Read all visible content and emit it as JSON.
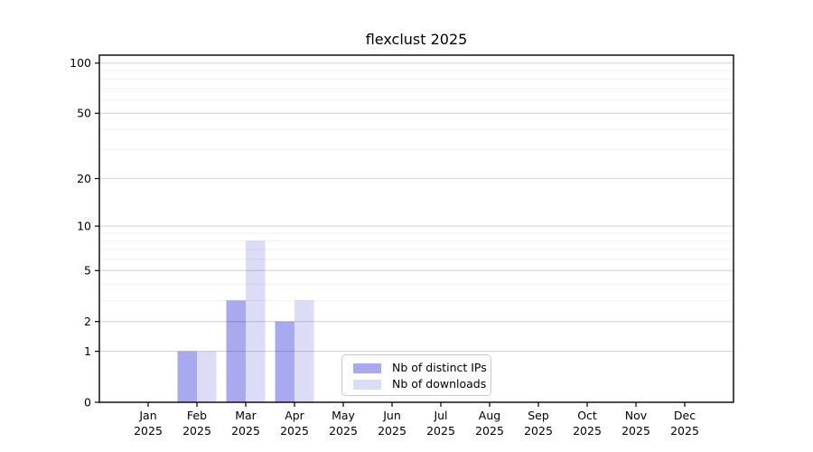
{
  "chart_data": {
    "type": "bar",
    "title": "flexclust 2025",
    "categories": [
      "Jan",
      "Feb",
      "Mar",
      "Apr",
      "May",
      "Jun",
      "Jul",
      "Aug",
      "Sep",
      "Oct",
      "Nov",
      "Dec"
    ],
    "x_tick_year": "2025",
    "series": [
      {
        "name": "Nb of distinct IPs",
        "color": "#a9a9f0",
        "values": [
          0,
          1,
          3,
          2,
          0,
          0,
          0,
          0,
          0,
          0,
          0,
          0
        ]
      },
      {
        "name": "Nb of downloads",
        "color": "#dcdcf7",
        "values": [
          0,
          1,
          8,
          3,
          0,
          0,
          0,
          0,
          0,
          0,
          0,
          0
        ]
      }
    ],
    "yscale": "log1p",
    "yticks": [
      0,
      1,
      2,
      5,
      10,
      20,
      50,
      100
    ],
    "minor_yticks": [
      3,
      4,
      6,
      7,
      8,
      9,
      30,
      40,
      60,
      70,
      80,
      90
    ],
    "ylim": [
      0,
      112
    ],
    "xlabel": "",
    "ylabel": "",
    "grid": true,
    "legend_position": "lower-center",
    "colors": {
      "frame": "#000000",
      "major_grid": "#d6d6d6",
      "minor_grid": "#efefef",
      "tick_text": "#000000"
    }
  }
}
